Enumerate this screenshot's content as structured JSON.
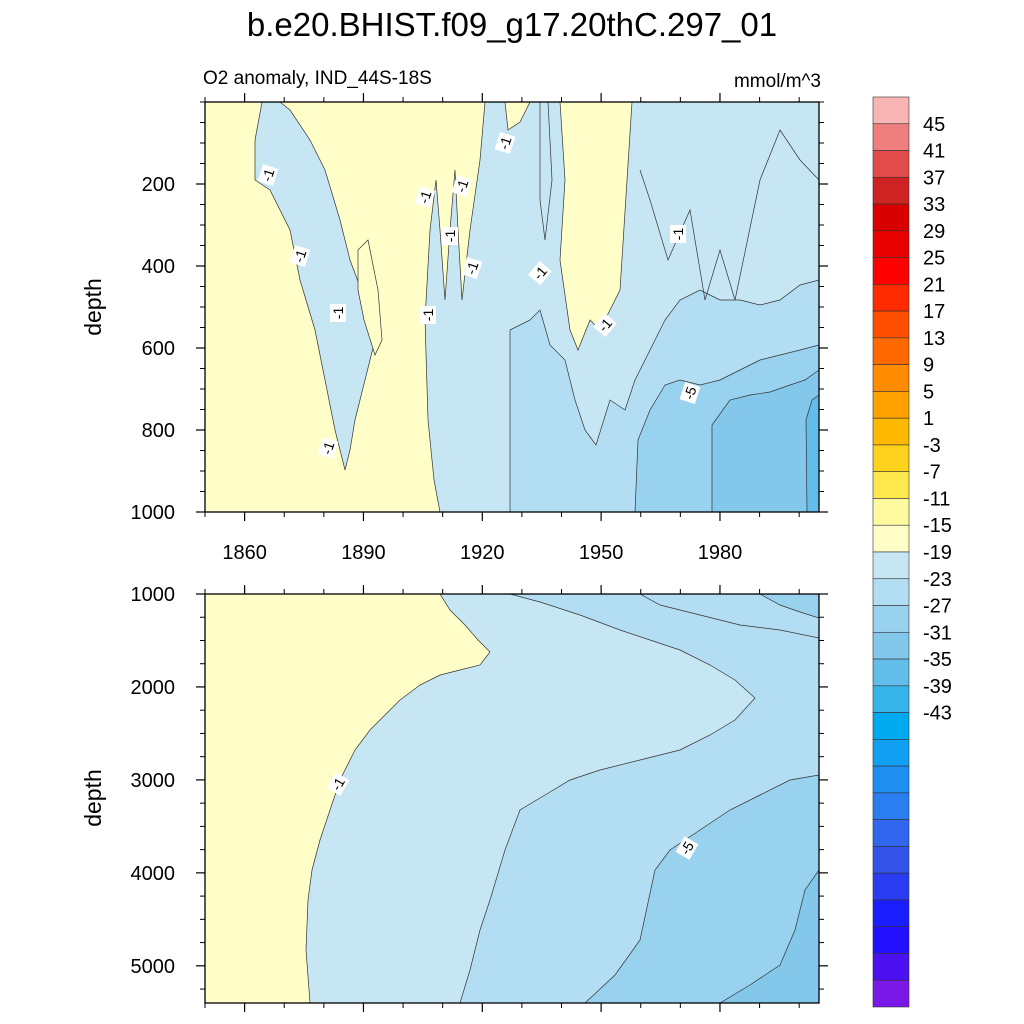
{
  "title": "b.e20.BHIST.f09_g17.20thC.297_01",
  "subtitle_left": "O2 anomaly, IND_44S-18S",
  "subtitle_right": "mmol/m^3",
  "chart_data": [
    {
      "type": "heatmap",
      "panel": "upper",
      "variable": "O2 anomaly",
      "ylabel": "depth",
      "xlabel": "",
      "xlim": [
        1850,
        2005
      ],
      "ylim": [
        0,
        1000
      ],
      "y_inverted": true,
      "xticks": [
        1860,
        1890,
        1920,
        1950,
        1980
      ],
      "yticks": [
        200,
        400,
        600,
        800,
        1000
      ],
      "contour_labels": [
        "-1",
        "-1",
        "-1",
        "-1",
        "-1",
        "-1",
        "-1",
        "-1",
        "-1",
        "-1",
        "-1",
        "-1",
        "-1",
        "-5"
      ],
      "grid": false
    },
    {
      "type": "heatmap",
      "panel": "lower",
      "variable": "O2 anomaly",
      "ylabel": "depth",
      "xlabel": "",
      "xlim": [
        1850,
        2005
      ],
      "ylim": [
        1000,
        5400
      ],
      "y_inverted": true,
      "xticks": [
        1860,
        1890,
        1920,
        1950,
        1980
      ],
      "yticks": [
        1000,
        2000,
        3000,
        4000,
        5000
      ],
      "contour_labels": [
        "-1",
        "-5"
      ],
      "grid": false
    }
  ],
  "colorbar": {
    "labels": [
      "45",
      "41",
      "37",
      "33",
      "29",
      "25",
      "21",
      "17",
      "13",
      "9",
      "5",
      "1",
      "-3",
      "-7",
      "-11",
      "-15",
      "-19",
      "-23",
      "-27",
      "-31",
      "-35",
      "-39",
      "-43"
    ],
    "colors": [
      "#f9b4b4",
      "#ef7e7e",
      "#e14b4b",
      "#cf2222",
      "#d80000",
      "#e80000",
      "#ff0000",
      "#ff2a00",
      "#ff4e00",
      "#ff6a00",
      "#ff8c00",
      "#ffa200",
      "#ffb900",
      "#ffd21e",
      "#ffe84b",
      "#fff9a0",
      "#fffdc8",
      "#c6e6f4",
      "#b2ddf2",
      "#99d2ee",
      "#83c8ea",
      "#62bdea",
      "#35b4ea",
      "#00aaf0",
      "#11a0f2",
      "#1e8ef0",
      "#2a7ef0",
      "#3067ee",
      "#3352e8",
      "#2a3cf2",
      "#1a1efe",
      "#2210ff",
      "#4a10f0",
      "#7a18e8"
    ]
  },
  "colors": {
    "c_pos": "#fffdc8",
    "c_m1": "#c6e6f4",
    "c_m3": "#b2ddf2",
    "c_m5": "#99d2ee",
    "c_m7": "#83c8ea",
    "c_m9": "#62bdea"
  }
}
